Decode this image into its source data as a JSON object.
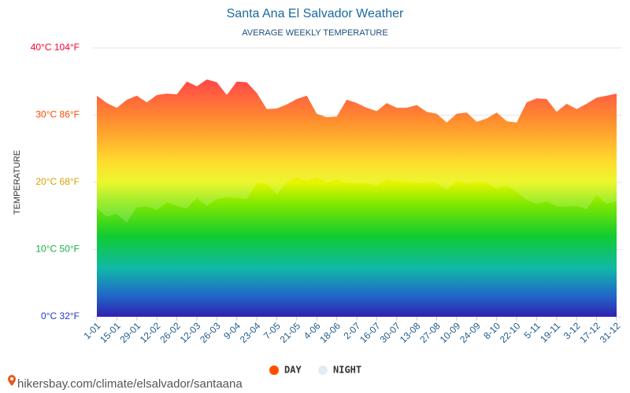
{
  "chart_data": {
    "type": "area",
    "title": "Santa Ana El Salvador Weather",
    "subtitle": "AVERAGE WEEKLY TEMPERATURE",
    "y_label": "TEMPERATURE",
    "source": "hikersbay.com/climate/elsalvador/santaana",
    "categories": [
      "1-01",
      null,
      "15-01",
      null,
      "29-01",
      null,
      "12-02",
      null,
      "26-02",
      null,
      "12-03",
      null,
      "26-03",
      null,
      "9-04",
      null,
      "23-04",
      null,
      "7-05",
      null,
      "21-05",
      null,
      "4-06",
      null,
      "18-06",
      null,
      "2-07",
      null,
      "16-07",
      null,
      "30-07",
      null,
      "13-08",
      null,
      "27-08",
      null,
      "10-09",
      null,
      "24-09",
      null,
      "8-10",
      null,
      "22-10",
      null,
      "5-11",
      null,
      "19-11",
      null,
      "3-12",
      null,
      "17-12",
      null,
      "31-12"
    ],
    "series": [
      {
        "name": "DAY",
        "color": "#ff4e00",
        "values": [
          32.9,
          31.8,
          31.1,
          32.3,
          32.9,
          31.9,
          33.0,
          33.2,
          33.1,
          35.0,
          34.3,
          35.3,
          34.9,
          33.0,
          35.0,
          34.9,
          33.3,
          30.9,
          31.0,
          31.6,
          32.4,
          32.9,
          30.2,
          29.7,
          29.8,
          32.3,
          31.8,
          31.1,
          30.6,
          31.8,
          31.1,
          31.1,
          31.5,
          30.5,
          30.2,
          28.9,
          30.2,
          30.4,
          29.0,
          29.5,
          30.4,
          29.1,
          28.9,
          31.9,
          32.5,
          32.4,
          30.5,
          31.7,
          30.9,
          31.7,
          32.6,
          32.9,
          33.2
        ]
      },
      {
        "name": "NIGHT",
        "color": "#e4ebf3",
        "values": [
          16.1,
          14.9,
          15.3,
          14.0,
          16.3,
          16.4,
          15.9,
          17.0,
          16.5,
          16.1,
          17.7,
          16.5,
          17.5,
          17.8,
          17.7,
          17.5,
          19.9,
          19.8,
          18.2,
          20.0,
          20.7,
          20.2,
          20.7,
          20.0,
          20.4,
          19.9,
          19.9,
          19.9,
          19.5,
          20.4,
          20.2,
          20.1,
          19.9,
          20.0,
          19.9,
          18.9,
          20.2,
          19.8,
          20.1,
          19.9,
          19.1,
          19.5,
          18.6,
          17.4,
          16.8,
          17.2,
          16.4,
          16.4,
          16.5,
          16.0,
          18.1,
          16.8,
          17.2
        ]
      }
    ],
    "ylim": [
      0,
      40
    ],
    "yticks": [
      {
        "value": 0,
        "label": "0°C 32°F"
      },
      {
        "value": 10,
        "label": "10°C 50°F"
      },
      {
        "value": 20,
        "label": "20°C 68°F"
      },
      {
        "value": 30,
        "label": "30°C 86°F"
      },
      {
        "value": 40,
        "label": "40°C 104°F"
      }
    ],
    "grid": true
  }
}
